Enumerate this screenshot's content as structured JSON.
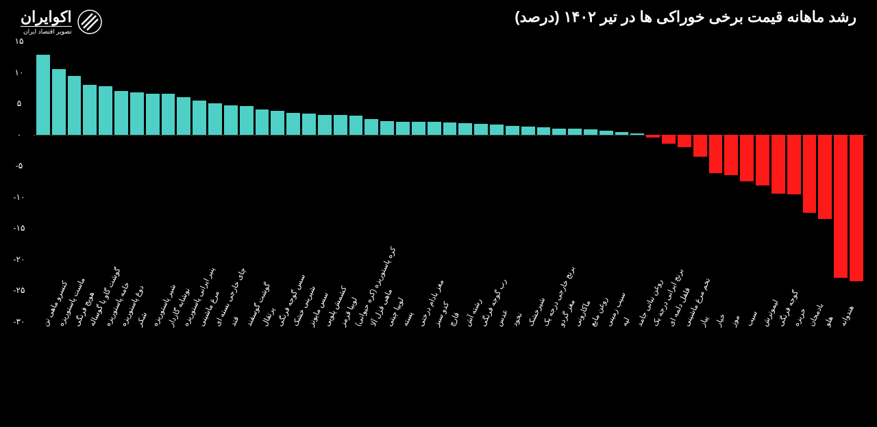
{
  "title": "رشد ماهانه قیمت برخی خوراکی ها در تیر ۱۴۰۲ (درصد)",
  "logo": {
    "main": "اکوایران",
    "sub": "تصویر اقتصاد ایران"
  },
  "chart": {
    "type": "bar",
    "ylim": [
      -30,
      15
    ],
    "yticks": [
      {
        "v": 15,
        "label": "۱۵"
      },
      {
        "v": 10,
        "label": "۱۰"
      },
      {
        "v": 5,
        "label": "۵"
      },
      {
        "v": 0,
        "label": "۰"
      },
      {
        "v": -5,
        "label": "-۵"
      },
      {
        "v": -10,
        "label": "-۱۰"
      },
      {
        "v": -15,
        "label": "-۱۵"
      },
      {
        "v": -20,
        "label": "-۲۰"
      },
      {
        "v": -25,
        "label": "-۲۵"
      },
      {
        "v": -30,
        "label": "-۳۰"
      }
    ],
    "positive_color": "#4fd0c7",
    "negative_color": "#ff1a1a",
    "background_color": "#000000",
    "zero_line_color": "#444444",
    "text_color": "#ffffff",
    "bar_width": 0.85,
    "label_fontsize": 11,
    "title_fontsize": 22,
    "items": [
      {
        "label": "کنسرو ماهی تن",
        "value": 12.8
      },
      {
        "label": "ماست پاستوریزه",
        "value": 10.5
      },
      {
        "label": "هویج فرنگی",
        "value": 9.4
      },
      {
        "label": "گوشت گاو یا گوساله",
        "value": 8.0
      },
      {
        "label": "خامه پاستوریزه",
        "value": 7.8
      },
      {
        "label": "دوغ پاستوریزه",
        "value": 7.0
      },
      {
        "label": "شکر",
        "value": 6.8
      },
      {
        "label": "شیر پاستوریزه",
        "value": 6.6
      },
      {
        "label": "نوشابه گازدار",
        "value": 6.5
      },
      {
        "label": "پنیر ایرانی پاستوریزه",
        "value": 6.0
      },
      {
        "label": "مرغ ماشینی",
        "value": 5.5
      },
      {
        "label": "چای خارجی بسته ای",
        "value": 5.0
      },
      {
        "label": "قند",
        "value": 4.7
      },
      {
        "label": "گوشت گوسفند",
        "value": 4.6
      },
      {
        "label": "پرتقال",
        "value": 4.0
      },
      {
        "label": "سس گوجه فرنگی",
        "value": 3.8
      },
      {
        "label": "شیرینی خشک",
        "value": 3.5
      },
      {
        "label": "سس مایونز",
        "value": 3.4
      },
      {
        "label": "کشمش پلویی",
        "value": 3.2
      },
      {
        "label": "لوبیا قرمز",
        "value": 3.1
      },
      {
        "label": "کره پاستوریزه (کره حیوانی)",
        "value": 3.0
      },
      {
        "label": "ماهی قزل آلا",
        "value": 2.5
      },
      {
        "label": "لوبیا چیتی",
        "value": 2.2
      },
      {
        "label": "پسته",
        "value": 2.1
      },
      {
        "label": "مغز بادام درختی",
        "value": 2.0
      },
      {
        "label": "کدو سبز",
        "value": 2.0
      },
      {
        "label": "قارچ",
        "value": 1.9
      },
      {
        "label": "رشته آش",
        "value": 1.8
      },
      {
        "label": "رب گوجه فرنگی",
        "value": 1.7
      },
      {
        "label": "عدس",
        "value": 1.6
      },
      {
        "label": "نخود",
        "value": 1.4
      },
      {
        "label": "شیرخشک",
        "value": 1.3
      },
      {
        "label": "برنج خارجی درجه یک",
        "value": 1.2
      },
      {
        "label": "مغز گردو",
        "value": 1.0
      },
      {
        "label": "ماکارونی",
        "value": 0.9
      },
      {
        "label": "روغن مایع",
        "value": 0.8
      },
      {
        "label": "سیب زمینی",
        "value": 0.6
      },
      {
        "label": "لپه",
        "value": 0.4
      },
      {
        "label": "روغن نباتی جامد",
        "value": 0.2
      },
      {
        "label": "برنج ایرانی درجه یک",
        "value": -0.5
      },
      {
        "label": "فلفل دلمه ای",
        "value": -1.5
      },
      {
        "label": "تخم مرغ ماشینی",
        "value": -2.0
      },
      {
        "label": "پیاز",
        "value": -3.5
      },
      {
        "label": "خیار",
        "value": -6.2
      },
      {
        "label": "موز",
        "value": -6.5
      },
      {
        "label": "سیب",
        "value": -7.5
      },
      {
        "label": "لیموترش",
        "value": -8.2
      },
      {
        "label": "گوجه فرنگی",
        "value": -9.5
      },
      {
        "label": "خربزه",
        "value": -9.6
      },
      {
        "label": "بادمجان",
        "value": -12.5
      },
      {
        "label": "هلو",
        "value": -13.5
      },
      {
        "label": "هندوانه",
        "value": -23.0
      },
      {
        "label": "",
        "value": -23.5
      }
    ]
  }
}
